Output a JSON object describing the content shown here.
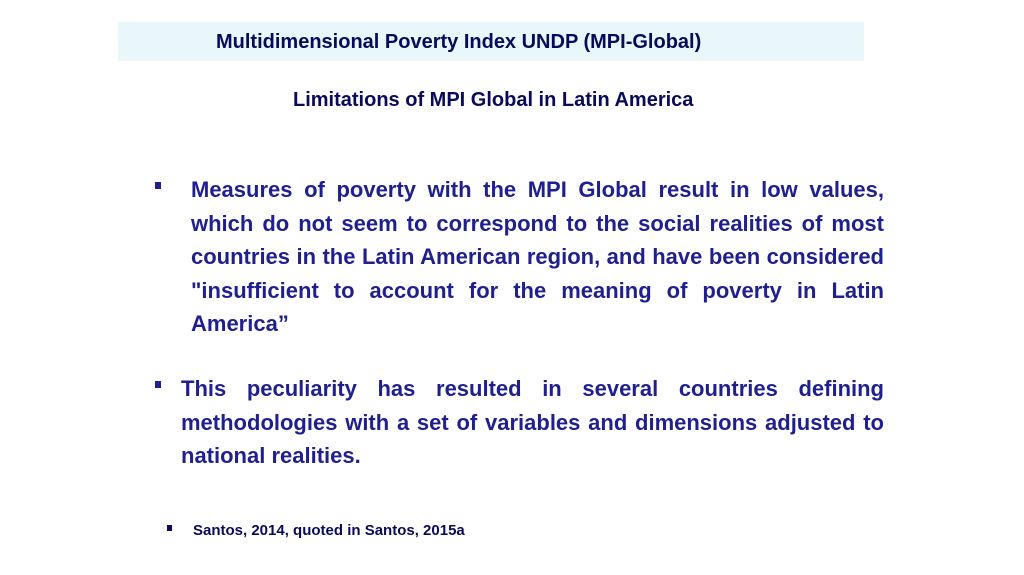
{
  "slide": {
    "title": "Multidimensional Poverty Index UNDP (MPI-Global)",
    "subtitle": "Limitations of MPI Global in Latin America",
    "bullets": [
      {
        "text": "Measures of poverty with the MPI Global result in low values, which do not seem to correspond to the social realities of most countries in the Latin American region, and have been considered \"insufficient to account for the meaning of poverty in Latin America”"
      },
      {
        "text": "This peculiarity has resulted in several countries defining methodologies with a set of variables and dimensions adjusted to national realities."
      }
    ],
    "footnote": "Santos, 2014, quoted in Santos, 2015a"
  },
  "colors": {
    "banner_background": "#e9f7fb",
    "title_text": "#0a0a5a",
    "bullet_text": "#1f1f8f"
  }
}
